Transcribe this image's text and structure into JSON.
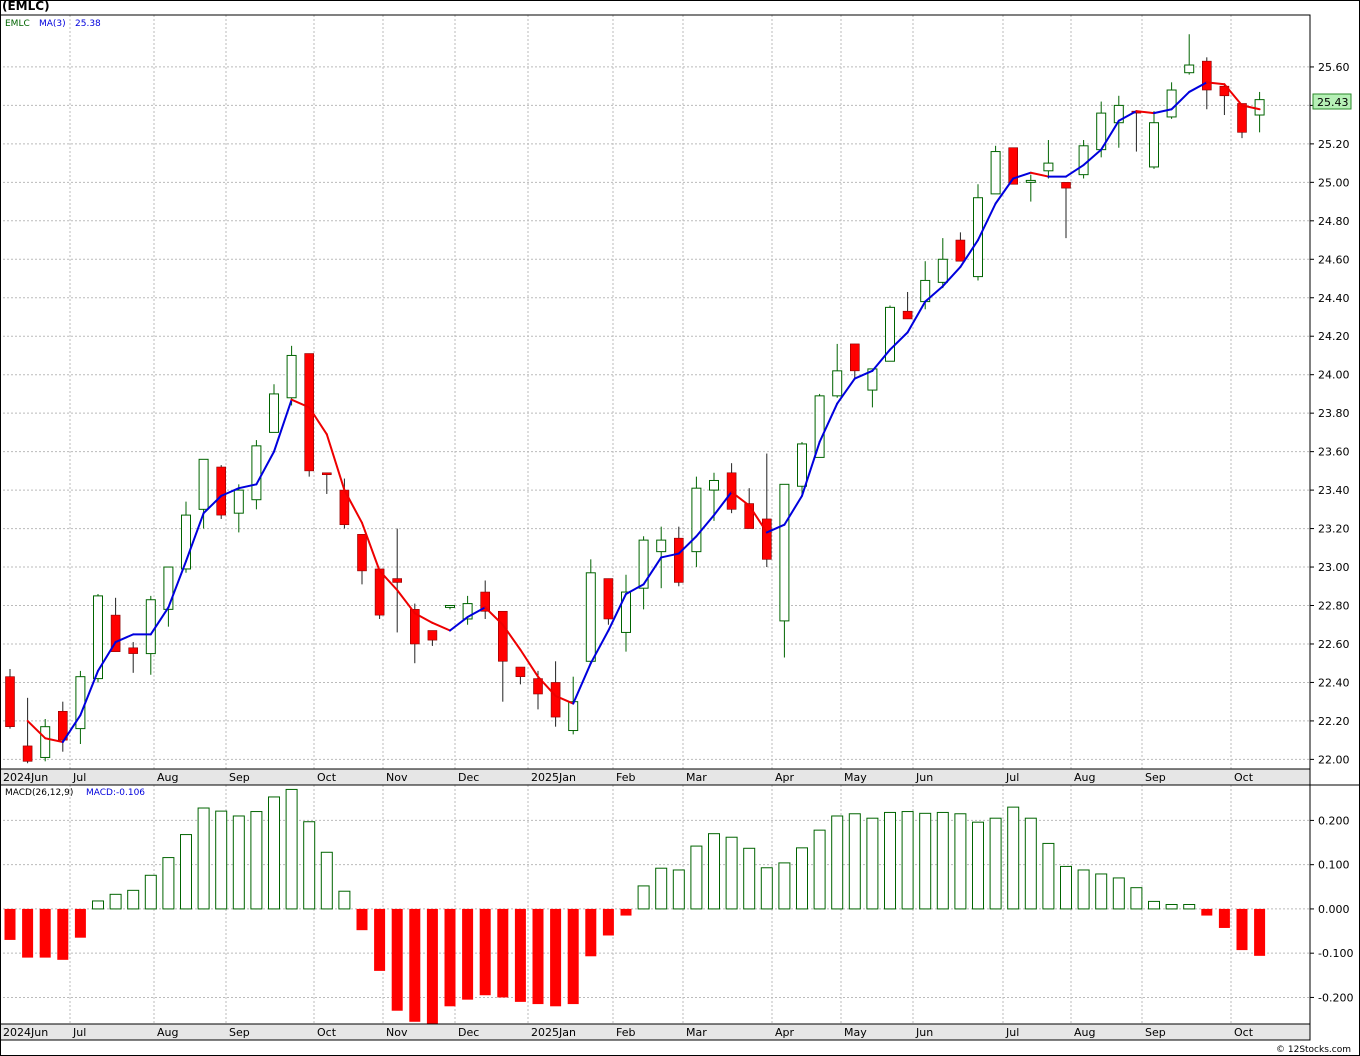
{
  "header": {
    "symbol": "(EMLC)",
    "credit": "© 12Stocks.com"
  },
  "price_panel": {
    "legend_symbol": "EMLC",
    "legend_ma": "MA(3)",
    "legend_ma_value": "25.38",
    "last_price_label": "25.43",
    "last_price": 25.43
  },
  "macd_panel": {
    "legend_macd": "MACD(26,12,9)",
    "legend_macd_value": "MACD:-0.106"
  },
  "colors": {
    "up_candle": "#006400",
    "down_candle": "#ff0000",
    "ma_up": "#0000dd",
    "ma_down": "#ee0000",
    "grid": "#bbbbbb",
    "axis_band": "#e6e6e6",
    "price_label_bg": "#b6f0b6"
  },
  "chart_data": [
    {
      "type": "candlestick",
      "title": "(EMLC)",
      "ylim": [
        21.95,
        25.87
      ],
      "y_ticks": [
        22.0,
        22.2,
        22.4,
        22.6,
        22.8,
        23.0,
        23.2,
        23.4,
        23.6,
        23.8,
        24.0,
        24.2,
        24.4,
        24.6,
        24.8,
        25.0,
        25.2,
        25.4,
        25.6
      ],
      "x_labels": [
        "2024Jun",
        "Jul",
        "Aug",
        "Sep",
        "Oct",
        "Nov",
        "Dec",
        "2025Jan",
        "Feb",
        "Mar",
        "Apr",
        "May",
        "Jun",
        "Jul",
        "Aug",
        "Sep",
        "Oct"
      ],
      "grid": true,
      "series": [
        {
          "name": "EMLC",
          "ohlc": [
            [
              22.43,
              22.47,
              22.16,
              22.17
            ],
            [
              22.07,
              22.32,
              21.98,
              21.99
            ],
            [
              22.01,
              22.21,
              21.99,
              22.17
            ],
            [
              22.25,
              22.3,
              22.04,
              22.1
            ],
            [
              22.16,
              22.46,
              22.08,
              22.43
            ],
            [
              22.42,
              22.86,
              22.4,
              22.85
            ],
            [
              22.75,
              22.84,
              22.57,
              22.56
            ],
            [
              22.58,
              22.61,
              22.45,
              22.55
            ],
            [
              22.55,
              22.85,
              22.44,
              22.83
            ],
            [
              22.78,
              23.0,
              22.69,
              23.0
            ],
            [
              22.99,
              23.34,
              22.97,
              23.27
            ],
            [
              23.3,
              23.56,
              23.2,
              23.56
            ],
            [
              23.52,
              23.53,
              23.25,
              23.27
            ],
            [
              23.28,
              23.43,
              23.18,
              23.4
            ],
            [
              23.35,
              23.66,
              23.3,
              23.63
            ],
            [
              23.7,
              23.95,
              23.7,
              23.9
            ],
            [
              23.88,
              24.15,
              23.84,
              24.1
            ],
            [
              24.11,
              24.11,
              23.47,
              23.5
            ],
            [
              23.49,
              23.49,
              23.38,
              23.48
            ],
            [
              23.4,
              23.46,
              23.2,
              23.22
            ],
            [
              23.17,
              23.17,
              22.91,
              22.98
            ],
            [
              22.99,
              22.99,
              22.73,
              22.75
            ],
            [
              22.94,
              23.2,
              22.66,
              22.92
            ],
            [
              22.78,
              22.81,
              22.5,
              22.6
            ],
            [
              22.67,
              22.67,
              22.59,
              22.62
            ],
            [
              22.79,
              22.79,
              22.78,
              22.8
            ],
            [
              22.73,
              22.85,
              22.7,
              22.81
            ],
            [
              22.87,
              22.93,
              22.73,
              22.77
            ],
            [
              22.77,
              22.77,
              22.3,
              22.51
            ],
            [
              22.48,
              22.48,
              22.39,
              22.43
            ],
            [
              22.42,
              22.46,
              22.26,
              22.34
            ],
            [
              22.4,
              22.51,
              22.17,
              22.22
            ],
            [
              22.15,
              22.43,
              22.13,
              22.3
            ],
            [
              22.51,
              23.04,
              22.5,
              22.97
            ],
            [
              22.94,
              22.94,
              22.7,
              22.73
            ],
            [
              22.66,
              22.96,
              22.56,
              22.87
            ],
            [
              22.89,
              23.16,
              22.78,
              23.14
            ],
            [
              23.08,
              23.21,
              22.89,
              23.14
            ],
            [
              23.15,
              23.21,
              22.9,
              22.92
            ],
            [
              23.08,
              23.47,
              23.0,
              23.41
            ],
            [
              23.4,
              23.49,
              23.24,
              23.45
            ],
            [
              23.49,
              23.54,
              23.28,
              23.3
            ],
            [
              23.33,
              23.41,
              23.23,
              23.2
            ],
            [
              23.25,
              23.59,
              23.0,
              23.04
            ],
            [
              22.72,
              23.43,
              22.53,
              23.43
            ],
            [
              23.42,
              23.65,
              23.38,
              23.64
            ],
            [
              23.57,
              23.9,
              23.57,
              23.89
            ],
            [
              23.89,
              24.16,
              23.88,
              24.02
            ],
            [
              24.16,
              24.16,
              23.98,
              24.02
            ],
            [
              23.92,
              24.01,
              23.83,
              24.03
            ],
            [
              24.07,
              24.36,
              24.07,
              24.35
            ],
            [
              24.33,
              24.43,
              24.29,
              24.29
            ],
            [
              24.38,
              24.59,
              24.34,
              24.49
            ],
            [
              24.48,
              24.71,
              24.45,
              24.6
            ],
            [
              24.7,
              24.74,
              24.59,
              24.59
            ],
            [
              24.51,
              24.99,
              24.49,
              24.92
            ],
            [
              24.94,
              25.19,
              24.94,
              25.16
            ],
            [
              25.18,
              25.18,
              25.0,
              24.99
            ],
            [
              25.0,
              25.04,
              24.9,
              25.01
            ],
            [
              25.06,
              25.22,
              25.02,
              25.1
            ],
            [
              25.0,
              25.0,
              24.71,
              24.97
            ],
            [
              25.04,
              25.22,
              25.02,
              25.19
            ],
            [
              25.17,
              25.42,
              25.13,
              25.36
            ],
            [
              25.31,
              25.45,
              25.18,
              25.4
            ],
            [
              25.37,
              25.37,
              25.16,
              25.36
            ],
            [
              25.08,
              25.37,
              25.07,
              25.31
            ],
            [
              25.34,
              25.52,
              25.33,
              25.48
            ],
            [
              25.57,
              25.77,
              25.56,
              25.61
            ],
            [
              25.63,
              25.65,
              25.38,
              25.48
            ],
            [
              25.5,
              25.51,
              25.35,
              25.45
            ],
            [
              25.41,
              25.41,
              25.23,
              25.26
            ],
            [
              25.35,
              25.47,
              25.26,
              25.43
            ]
          ]
        },
        {
          "name": "MA(3)",
          "values": [
            null,
            22.2,
            22.11,
            22.09,
            22.23,
            22.46,
            22.61,
            22.65,
            22.65,
            22.79,
            23.03,
            23.28,
            23.37,
            23.41,
            23.43,
            23.6,
            23.87,
            23.83,
            23.69,
            23.4,
            23.23,
            22.98,
            22.88,
            22.76,
            22.71,
            22.67,
            22.74,
            22.79,
            22.7,
            22.57,
            22.43,
            22.33,
            22.29,
            22.5,
            22.67,
            22.86,
            22.91,
            23.05,
            23.07,
            23.16,
            23.27,
            23.39,
            23.32,
            23.18,
            23.22,
            23.37,
            23.65,
            23.85,
            23.98,
            24.02,
            24.13,
            24.22,
            24.38,
            24.46,
            24.56,
            24.7,
            24.89,
            25.02,
            25.05,
            25.03,
            25.03,
            25.09,
            25.17,
            25.32,
            25.37,
            25.36,
            25.38,
            25.47,
            25.52,
            25.51,
            25.4,
            25.38
          ]
        }
      ]
    },
    {
      "type": "bar",
      "title": "MACD(26,12,9)",
      "ylim": [
        -0.26,
        0.28
      ],
      "y_ticks": [
        0.2,
        0.1,
        0.0,
        -0.1,
        -0.2
      ],
      "y_tick_labels": [
        "0.200",
        "0.100",
        "0.000",
        "-0.100",
        "-0.200"
      ],
      "x_labels": [
        "2024Jun",
        "Jul",
        "Aug",
        "Sep",
        "Oct",
        "Nov",
        "Dec",
        "2025Jan",
        "Feb",
        "Mar",
        "Apr",
        "May",
        "Jun",
        "Jul",
        "Aug",
        "Sep",
        "Oct"
      ],
      "series": [
        {
          "name": "MACD",
          "values": [
            -0.07,
            -0.11,
            -0.11,
            -0.115,
            -0.065,
            0.018,
            0.033,
            0.042,
            0.076,
            0.116,
            0.168,
            0.228,
            0.221,
            0.21,
            0.22,
            0.253,
            0.27,
            0.197,
            0.128,
            0.04,
            -0.048,
            -0.14,
            -0.23,
            -0.255,
            -0.26,
            -0.22,
            -0.205,
            -0.195,
            -0.2,
            -0.21,
            -0.215,
            -0.22,
            -0.215,
            -0.107,
            -0.06,
            -0.015,
            0.052,
            0.092,
            0.088,
            0.142,
            0.17,
            0.162,
            0.137,
            0.093,
            0.104,
            0.138,
            0.178,
            0.21,
            0.215,
            0.205,
            0.218,
            0.22,
            0.216,
            0.218,
            0.215,
            0.196,
            0.205,
            0.23,
            0.205,
            0.148,
            0.096,
            0.088,
            0.079,
            0.07,
            0.048,
            0.017,
            0.01,
            0.01,
            -0.015,
            -0.043,
            -0.093,
            -0.106
          ]
        }
      ]
    }
  ]
}
